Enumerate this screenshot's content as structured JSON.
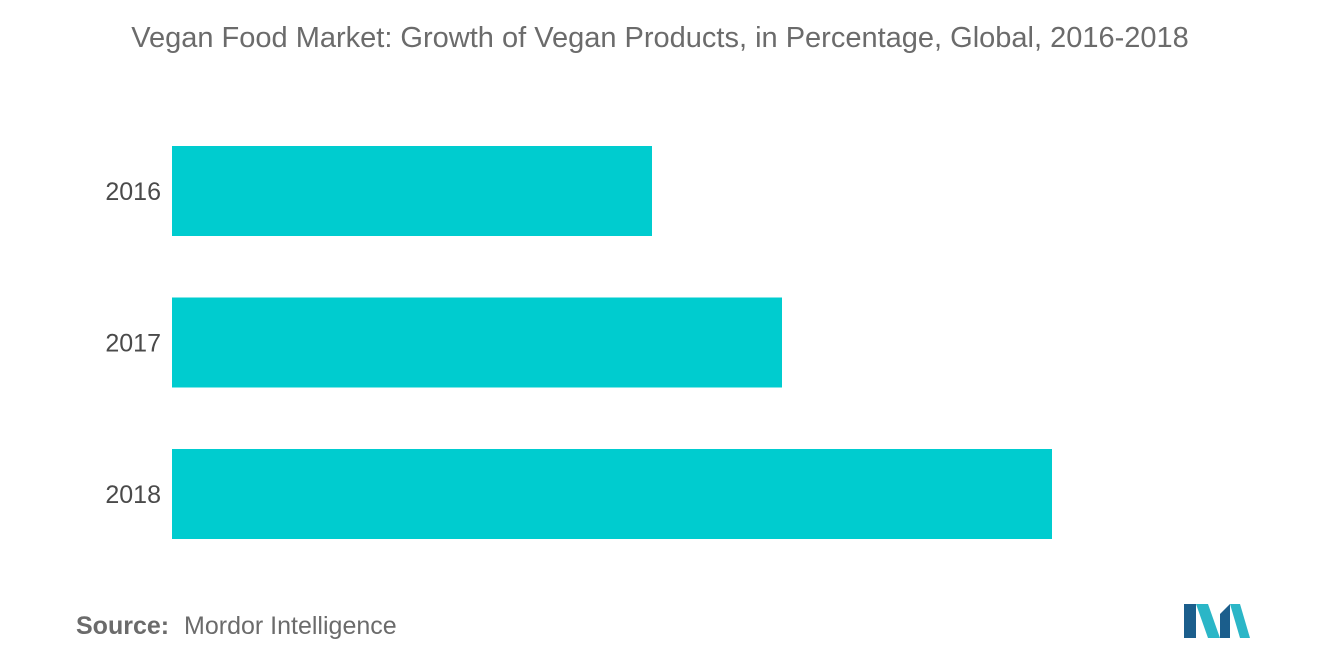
{
  "chart_data": {
    "type": "bar",
    "orientation": "horizontal",
    "title": "Vegan Food Market: Growth of Vegan Products, in Percentage, Global, 2016-2018",
    "categories": [
      "2016",
      "2017",
      "2018"
    ],
    "values": [
      4.8,
      6.1,
      8.8
    ],
    "xlim": [
      0,
      10
    ],
    "xlabel": "",
    "ylabel": "",
    "grid": false,
    "legend": "none",
    "colors": {
      "bar": "#00cccf"
    }
  },
  "source": {
    "label": "Source:",
    "text": "Mordor Intelligence"
  },
  "logo": {
    "icon": "mordor-intelligence-logo-icon",
    "colors": [
      "#1b5e8c",
      "#2bb6c7"
    ]
  }
}
